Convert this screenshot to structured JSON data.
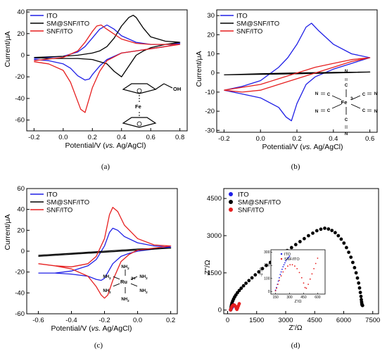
{
  "colors": {
    "ITO": "#1f1fe6",
    "SM@SNF/ITO": "#000000",
    "SNF/ITO": "#e61f1f"
  },
  "chart_data": [
    {
      "id": "a",
      "type": "line",
      "caption": "(a)",
      "xlabel": "Potential/V (vs. Ag/AgCl)",
      "ylabel": "Current/μA",
      "xlim": [
        -0.25,
        0.85
      ],
      "ylim": [
        -70,
        42
      ],
      "xticks": [
        "-0.2",
        "0.0",
        "0.2",
        "0.4",
        "0.6",
        "0.8"
      ],
      "xtickvals": [
        -0.2,
        0.0,
        0.2,
        0.4,
        0.6,
        0.8
      ],
      "yticks": [
        "-60",
        "-40",
        "-20",
        "0",
        "20",
        "40"
      ],
      "ytickvals": [
        -60,
        -40,
        -20,
        0,
        20,
        40
      ],
      "legend": [
        "ITO",
        "SM@SNF/ITO",
        "SNF/ITO"
      ],
      "legend_position": "top-left",
      "grid": false,
      "inset_label": "Fe",
      "inset_label2": "OH",
      "series": [
        {
          "name": "ITO",
          "x": [
            -0.2,
            0.0,
            0.1,
            0.15,
            0.2,
            0.25,
            0.3,
            0.35,
            0.4,
            0.5,
            0.6,
            0.7,
            0.8,
            0.7,
            0.6,
            0.5,
            0.4,
            0.3,
            0.25,
            0.2,
            0.18,
            0.15,
            0.1,
            0.05,
            0.0,
            -0.1,
            -0.2
          ],
          "y": [
            -3,
            -1,
            3,
            8,
            16,
            24,
            28,
            24,
            18,
            12,
            10,
            10,
            11,
            8,
            6,
            4,
            2,
            -4,
            -10,
            -18,
            -22,
            -23,
            -19,
            -12,
            -8,
            -5,
            -4
          ]
        },
        {
          "name": "SM@SNF/ITO",
          "x": [
            -0.2,
            0.0,
            0.1,
            0.2,
            0.25,
            0.3,
            0.35,
            0.4,
            0.45,
            0.48,
            0.5,
            0.55,
            0.6,
            0.7,
            0.8,
            0.7,
            0.6,
            0.55,
            0.5,
            0.45,
            0.4,
            0.35,
            0.3,
            0.2,
            0.1,
            0.0,
            -0.1,
            -0.2
          ],
          "y": [
            -2,
            -1,
            0,
            2,
            4,
            8,
            16,
            27,
            35,
            37,
            35,
            25,
            17,
            13,
            12,
            10,
            7,
            4,
            0,
            -10,
            -20,
            -15,
            -8,
            -4,
            -3,
            -3,
            -3,
            -2
          ]
        },
        {
          "name": "SNF/ITO",
          "x": [
            -0.2,
            0.0,
            0.1,
            0.15,
            0.2,
            0.23,
            0.26,
            0.3,
            0.4,
            0.5,
            0.6,
            0.7,
            0.8,
            0.7,
            0.6,
            0.5,
            0.4,
            0.3,
            0.25,
            0.2,
            0.15,
            0.12,
            0.05,
            0.0,
            -0.1,
            -0.2
          ],
          "y": [
            -5,
            -2,
            4,
            12,
            22,
            27,
            28,
            24,
            15,
            11,
            10,
            10,
            10,
            8,
            6,
            4,
            2,
            -5,
            -15,
            -30,
            -53,
            -50,
            -25,
            -14,
            -8,
            -6
          ]
        }
      ]
    },
    {
      "id": "b",
      "type": "line",
      "caption": "(b)",
      "xlabel": "Potential/V (vs. Ag/AgCl)",
      "ylabel": "Current/μA",
      "xlim": [
        -0.24,
        0.64
      ],
      "ylim": [
        -31,
        33
      ],
      "xticks": [
        "-0.2",
        "0.0",
        "0.2",
        "0.4",
        "0.6"
      ],
      "xtickvals": [
        -0.2,
        0.0,
        0.2,
        0.4,
        0.6
      ],
      "yticks": [
        "-30",
        "-20",
        "-10",
        "0",
        "10",
        "20",
        "30"
      ],
      "ytickvals": [
        -30,
        -20,
        -10,
        0,
        10,
        20,
        30
      ],
      "legend": [
        "ITO",
        "SM@SNF/ITO",
        "SNF/ITO"
      ],
      "legend_position": "top-left",
      "grid": false,
      "inset_center": "Fe",
      "inset_charge": "3-",
      "inset_ligand": "C≡N",
      "series": [
        {
          "name": "ITO",
          "x": [
            -0.2,
            -0.1,
            0.0,
            0.1,
            0.15,
            0.2,
            0.25,
            0.28,
            0.32,
            0.4,
            0.5,
            0.6,
            0.5,
            0.4,
            0.3,
            0.25,
            0.2,
            0.17,
            0.14,
            0.1,
            0.0,
            -0.1,
            -0.2
          ],
          "y": [
            -9,
            -7,
            -4,
            3,
            8,
            15,
            24,
            26,
            22,
            15,
            10,
            8,
            5,
            2,
            -2,
            -6,
            -16,
            -25,
            -23,
            -18,
            -13,
            -11,
            -9
          ]
        },
        {
          "name": "SM@SNF/ITO",
          "x": [
            -0.2,
            0.0,
            0.2,
            0.4,
            0.6,
            0.4,
            0.2,
            0.0,
            -0.2
          ],
          "y": [
            -1.0,
            -0.7,
            -0.4,
            0.0,
            0.5,
            0.3,
            0.0,
            -0.4,
            -1.0
          ]
        },
        {
          "name": "SNF/ITO",
          "x": [
            -0.2,
            0.0,
            0.1,
            0.2,
            0.3,
            0.4,
            0.5,
            0.6,
            0.5,
            0.4,
            0.3,
            0.2,
            0.1,
            0.0,
            -0.1,
            -0.2
          ],
          "y": [
            -9,
            -6,
            -3,
            0,
            3,
            5,
            7,
            8,
            6,
            3,
            0,
            -3,
            -6,
            -9,
            -10,
            -9
          ]
        }
      ]
    },
    {
      "id": "c",
      "type": "line",
      "caption": "(c)",
      "xlabel": "Potential/V (vs. Ag/AgCl)",
      "ylabel": "Current/μA",
      "xlim": [
        -0.67,
        0.24
      ],
      "ylim": [
        -60,
        60
      ],
      "xticks": [
        "-0.6",
        "-0.4",
        "-0.2",
        "0.0",
        "0.2"
      ],
      "xtickvals": [
        -0.6,
        -0.4,
        -0.2,
        0.0,
        0.2
      ],
      "yticks": [
        "-60",
        "-40",
        "-20",
        "0",
        "20",
        "40",
        "60"
      ],
      "ytickvals": [
        -60,
        -40,
        -20,
        0,
        20,
        40,
        60
      ],
      "legend": [
        "ITO",
        "SM@SNF/ITO",
        "SNF/ITO"
      ],
      "legend_position": "top-left",
      "grid": false,
      "inset_center": "Ru",
      "inset_charge": "3+",
      "inset_ligand": "NH",
      "series": [
        {
          "name": "ITO",
          "x": [
            -0.6,
            -0.5,
            -0.4,
            -0.3,
            -0.25,
            -0.2,
            -0.17,
            -0.15,
            -0.12,
            -0.08,
            0.0,
            0.1,
            0.2,
            0.1,
            0.0,
            -0.05,
            -0.1,
            -0.15,
            -0.2,
            -0.22,
            -0.25,
            -0.3,
            -0.4,
            -0.5,
            -0.6
          ],
          "y": [
            -21,
            -21,
            -19,
            -14,
            -8,
            5,
            18,
            22,
            20,
            14,
            8,
            5,
            4,
            2,
            0,
            -2,
            -5,
            -12,
            -26,
            -28,
            -27,
            -24,
            -22,
            -21,
            -21
          ]
        },
        {
          "name": "SM@SNF/ITO",
          "x": [
            -0.6,
            -0.4,
            -0.2,
            0.0,
            0.2,
            0.0,
            -0.2,
            -0.4,
            -0.6
          ],
          "y": [
            -5,
            -3,
            -1,
            1,
            3,
            2,
            0,
            -2,
            -4
          ]
        },
        {
          "name": "SNF/ITO",
          "x": [
            -0.6,
            -0.5,
            -0.4,
            -0.3,
            -0.25,
            -0.2,
            -0.17,
            -0.15,
            -0.12,
            -0.08,
            0.0,
            0.1,
            0.2,
            0.1,
            0.0,
            -0.05,
            -0.1,
            -0.15,
            -0.18,
            -0.2,
            -0.22,
            -0.25,
            -0.3,
            -0.4,
            -0.5,
            -0.6
          ],
          "y": [
            -12,
            -14,
            -15,
            -12,
            -5,
            12,
            35,
            42,
            38,
            25,
            12,
            6,
            5,
            3,
            1,
            -3,
            -10,
            -28,
            -42,
            -45,
            -42,
            -34,
            -24,
            -17,
            -14,
            -12
          ]
        }
      ]
    },
    {
      "id": "d",
      "type": "scatter",
      "caption": "(d)",
      "xlabel": "Z'/Ω",
      "ylabel": "Z''/Ω",
      "xlim": [
        -200,
        7800
      ],
      "ylim": [
        -150,
        4900
      ],
      "xticks": [
        "0",
        "1500",
        "3000",
        "4500",
        "6000",
        "7500"
      ],
      "xtickvals": [
        0,
        1500,
        3000,
        4500,
        6000,
        7500
      ],
      "yticks": [
        "0",
        "1500",
        "3000",
        "4500"
      ],
      "ytickvals": [
        0,
        1500,
        3000,
        4500
      ],
      "legend": [
        "ITO",
        "SM@SNF/ITO",
        "SNF/ITO"
      ],
      "legend_position": "top-left",
      "grid": false,
      "inset": {
        "xlabel": "Z'/Ω",
        "ylabel": "-Z''/Ω",
        "xticks": [
          "150",
          "300",
          "450",
          "600"
        ],
        "xtickvals": [
          150,
          300,
          450,
          600
        ],
        "yticks": [
          "0",
          "100",
          "200",
          "300"
        ],
        "ytickvals": [
          0,
          100,
          200,
          300
        ],
        "xlim": [
          100,
          680
        ],
        "ylim": [
          -20,
          320
        ],
        "legend": [
          "ITO",
          "SNF/ITO"
        ],
        "ITO": {
          "x": [
            150,
            160,
            170,
            180,
            190,
            200,
            210,
            220,
            230,
            240,
            250,
            260,
            270,
            280,
            290,
            300
          ],
          "y": [
            10,
            30,
            55,
            80,
            105,
            130,
            150,
            170,
            190,
            205,
            220,
            235,
            245,
            255,
            262,
            270
          ]
        },
        "SNF/ITO": {
          "x": [
            150,
            160,
            175,
            190,
            210,
            230,
            255,
            280,
            305,
            330,
            355,
            380,
            405,
            430,
            450,
            465,
            480,
            500,
            520,
            540,
            560,
            580,
            600
          ],
          "y": [
            5,
            25,
            55,
            85,
            120,
            150,
            175,
            195,
            205,
            205,
            195,
            175,
            145,
            105,
            65,
            30,
            25,
            55,
            95,
            135,
            175,
            215,
            255
          ]
        }
      },
      "series": [
        {
          "name": "ITO",
          "x": [
            150,
            170,
            190,
            210,
            230,
            250,
            270,
            290,
            310
          ],
          "y": [
            10,
            35,
            60,
            85,
            110,
            135,
            160,
            185,
            210
          ]
        },
        {
          "name": "SM@SNF/ITO",
          "x": [
            160,
            170,
            185,
            205,
            230,
            265,
            310,
            365,
            430,
            510,
            600,
            700,
            820,
            950,
            1100,
            1260,
            1430,
            1610,
            1800,
            2000,
            2210,
            2420,
            2640,
            2860,
            3080,
            3300,
            3520,
            3740,
            3960,
            4180,
            4400,
            4610,
            4820,
            5020,
            5210,
            5390,
            5560,
            5720,
            5870,
            6010,
            6140,
            6260,
            6370,
            6470,
            6560,
            6640,
            6710,
            6770,
            6820,
            6860,
            6890,
            6910,
            6925,
            6935,
            6945,
            6955,
            6965,
            6975
          ],
          "y": [
            10,
            80,
            150,
            220,
            290,
            370,
            450,
            530,
            610,
            700,
            790,
            880,
            980,
            1080,
            1190,
            1300,
            1420,
            1540,
            1670,
            1800,
            1920,
            2040,
            2160,
            2280,
            2400,
            2520,
            2640,
            2760,
            2880,
            3000,
            3100,
            3200,
            3260,
            3300,
            3270,
            3210,
            3120,
            3000,
            2860,
            2700,
            2520,
            2330,
            2130,
            1920,
            1710,
            1500,
            1290,
            1090,
            890,
            710,
            550,
            420,
            330,
            260,
            220,
            200,
            190,
            185
          ]
        },
        {
          "name": "SNF/ITO",
          "x": [
            150,
            175,
            210,
            255,
            305,
            355,
            405,
            450,
            480,
            520,
            560,
            600
          ],
          "y": [
            5,
            55,
            120,
            175,
            205,
            195,
            145,
            65,
            25,
            95,
            175,
            255
          ]
        }
      ]
    }
  ]
}
